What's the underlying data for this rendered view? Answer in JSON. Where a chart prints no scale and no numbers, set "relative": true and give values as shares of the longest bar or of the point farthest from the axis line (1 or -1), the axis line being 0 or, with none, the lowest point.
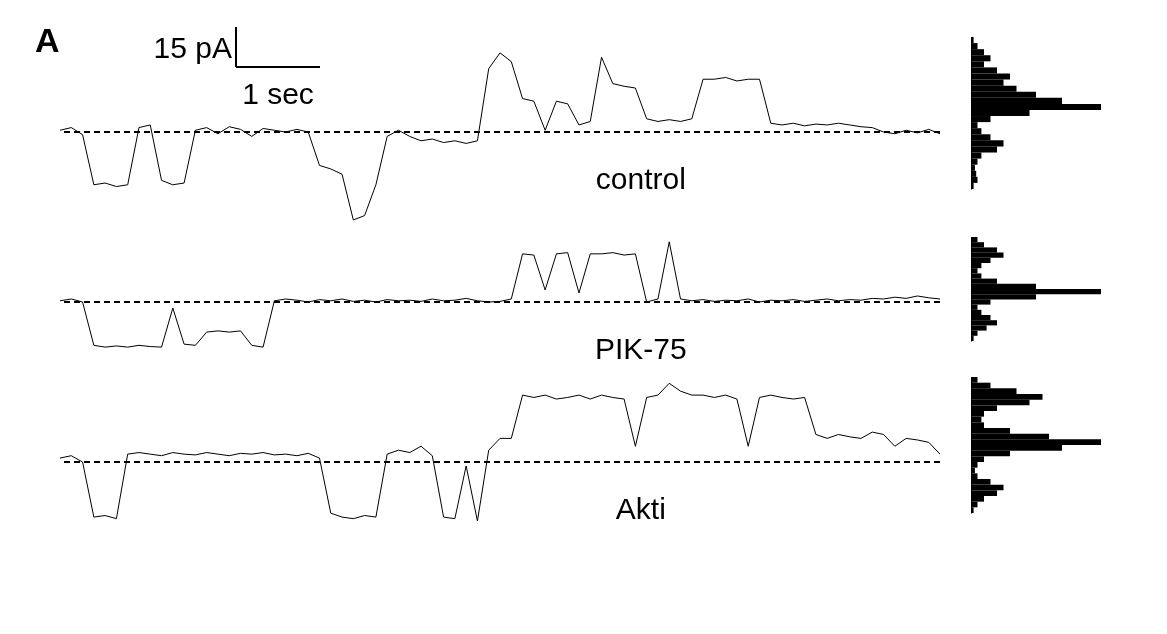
{
  "chart_data": [
    {
      "type": "line",
      "title": "control",
      "relative": true,
      "color": "#000000",
      "annotations": [
        "A",
        "15 pA",
        "1 sec"
      ],
      "categories": [
        null,
        null,
        null,
        null,
        null,
        null,
        null,
        null,
        null,
        null,
        null,
        null,
        null,
        null,
        null,
        null,
        null,
        null,
        null,
        null,
        null,
        null,
        null,
        null,
        null,
        null,
        null,
        null,
        null,
        null,
        null,
        null,
        null,
        null,
        null,
        null,
        null,
        null,
        null,
        null,
        null,
        null,
        null,
        null,
        null,
        null,
        null,
        null,
        null,
        null,
        null,
        null,
        null,
        null,
        null,
        null,
        null,
        null,
        null,
        null,
        null,
        null,
        null,
        null,
        null,
        null,
        null,
        null,
        null,
        null,
        null,
        null,
        null,
        null,
        null,
        null,
        null,
        null,
        null
      ],
      "values": [
        0.02,
        0.05,
        -0.03,
        -0.6,
        -0.58,
        -0.62,
        -0.6,
        0.05,
        0.08,
        -0.55,
        -0.6,
        -0.58,
        0.02,
        0.05,
        -0.02,
        0.06,
        0.03,
        -0.05,
        0.04,
        0.02,
        0.0,
        0.03,
        0.0,
        -0.38,
        -0.42,
        -0.48,
        -1.0,
        -0.95,
        -0.6,
        -0.05,
        0.02,
        -0.05,
        -0.1,
        -0.08,
        -0.12,
        -0.1,
        -0.13,
        -0.1,
        0.72,
        0.9,
        0.8,
        0.38,
        0.35,
        0.02,
        0.35,
        0.32,
        0.08,
        0.12,
        0.85,
        0.55,
        0.52,
        0.5,
        0.15,
        0.12,
        0.14,
        0.12,
        0.15,
        0.6,
        0.6,
        0.62,
        0.58,
        0.6,
        0.6,
        0.1,
        0.08,
        0.1,
        0.07,
        0.09,
        0.08,
        0.1,
        0.08,
        0.06,
        0.05,
        0.0,
        -0.02,
        0.02,
        -0.01,
        0.03,
        -0.02
      ],
      "ref_lines": [
        {
          "axis": "y",
          "value": 0,
          "line_style": "dashed"
        }
      ]
    },
    {
      "type": "bar",
      "orientation": "horizontal",
      "relative": true,
      "color": "#000000",
      "categories": [
        null,
        null,
        null,
        null,
        null,
        null,
        null,
        null,
        null,
        null,
        null,
        null,
        null,
        null,
        null,
        null,
        null,
        null,
        null,
        null,
        null,
        null,
        null,
        null,
        null
      ],
      "values": [
        0.02,
        0.05,
        0.1,
        0.15,
        0.1,
        0.2,
        0.3,
        0.25,
        0.35,
        0.5,
        0.7,
        1.0,
        0.45,
        0.15,
        0.05,
        0.08,
        0.15,
        0.25,
        0.2,
        0.08,
        0.05,
        0.03,
        0.04,
        0.05,
        0.02
      ]
    },
    {
      "type": "line",
      "title": "PIK-75",
      "relative": true,
      "color": "#000000",
      "categories": [
        null,
        null,
        null,
        null,
        null,
        null,
        null,
        null,
        null,
        null,
        null,
        null,
        null,
        null,
        null,
        null,
        null,
        null,
        null,
        null,
        null,
        null,
        null,
        null,
        null,
        null,
        null,
        null,
        null,
        null,
        null,
        null,
        null,
        null,
        null,
        null,
        null,
        null,
        null,
        null,
        null,
        null,
        null,
        null,
        null,
        null,
        null,
        null,
        null,
        null,
        null,
        null,
        null,
        null,
        null,
        null,
        null,
        null,
        null,
        null,
        null,
        null,
        null,
        null,
        null,
        null,
        null,
        null,
        null,
        null,
        null,
        null,
        null,
        null,
        null,
        null,
        null,
        null,
        null
      ],
      "values": [
        0.02,
        0.05,
        0.0,
        -0.72,
        -0.75,
        -0.73,
        -0.75,
        -0.72,
        -0.74,
        -0.75,
        -0.1,
        -0.7,
        -0.72,
        -0.5,
        -0.48,
        -0.5,
        -0.48,
        -0.72,
        -0.75,
        0.02,
        0.05,
        0.03,
        0.0,
        0.04,
        0.02,
        0.05,
        0.01,
        0.03,
        0.0,
        0.04,
        0.02,
        0.03,
        0.01,
        0.05,
        0.02,
        0.03,
        0.06,
        0.02,
        0.0,
        0.01,
        0.05,
        0.8,
        0.78,
        0.2,
        0.8,
        0.82,
        0.15,
        0.8,
        0.8,
        0.82,
        0.78,
        0.8,
        0.0,
        0.05,
        1.0,
        0.05,
        0.02,
        0.04,
        0.01,
        0.03,
        0.02,
        0.05,
        0.0,
        0.03,
        0.02,
        0.04,
        0.01,
        0.03,
        0.05,
        0.02,
        0.04,
        0.03,
        0.06,
        0.05,
        0.08,
        0.06,
        0.1,
        0.07,
        0.05
      ],
      "ref_lines": [
        {
          "axis": "y",
          "value": 0,
          "line_style": "dashed"
        }
      ]
    },
    {
      "type": "bar",
      "orientation": "horizontal",
      "relative": true,
      "color": "#000000",
      "categories": [
        null,
        null,
        null,
        null,
        null,
        null,
        null,
        null,
        null,
        null,
        null,
        null,
        null,
        null,
        null,
        null,
        null,
        null,
        null,
        null
      ],
      "values": [
        0.05,
        0.1,
        0.2,
        0.25,
        0.15,
        0.08,
        0.05,
        0.08,
        0.2,
        0.5,
        1.0,
        0.5,
        0.15,
        0.05,
        0.08,
        0.15,
        0.2,
        0.12,
        0.05,
        0.02
      ]
    },
    {
      "type": "line",
      "title": "Akti",
      "relative": true,
      "color": "#000000",
      "categories": [
        null,
        null,
        null,
        null,
        null,
        null,
        null,
        null,
        null,
        null,
        null,
        null,
        null,
        null,
        null,
        null,
        null,
        null,
        null,
        null,
        null,
        null,
        null,
        null,
        null,
        null,
        null,
        null,
        null,
        null,
        null,
        null,
        null,
        null,
        null,
        null,
        null,
        null,
        null,
        null,
        null,
        null,
        null,
        null,
        null,
        null,
        null,
        null,
        null,
        null,
        null,
        null,
        null,
        null,
        null,
        null,
        null,
        null,
        null,
        null,
        null,
        null,
        null,
        null,
        null,
        null,
        null,
        null,
        null,
        null,
        null,
        null,
        null,
        null,
        null,
        null,
        null,
        null,
        null
      ],
      "values": [
        0.05,
        0.08,
        0.0,
        -0.7,
        -0.68,
        -0.72,
        0.1,
        0.12,
        0.1,
        0.08,
        0.12,
        0.1,
        0.09,
        0.12,
        0.1,
        0.08,
        0.11,
        0.1,
        0.12,
        0.09,
        0.1,
        0.08,
        0.11,
        0.05,
        -0.65,
        -0.7,
        -0.72,
        -0.68,
        -0.7,
        0.1,
        0.15,
        0.12,
        0.2,
        0.08,
        -0.7,
        -0.72,
        -0.05,
        -0.75,
        0.15,
        0.3,
        0.3,
        0.85,
        0.82,
        0.85,
        0.8,
        0.82,
        0.85,
        0.8,
        0.85,
        0.82,
        0.8,
        0.2,
        0.82,
        0.85,
        1.0,
        0.9,
        0.85,
        0.85,
        0.82,
        0.85,
        0.8,
        0.2,
        0.82,
        0.85,
        0.82,
        0.8,
        0.82,
        0.35,
        0.3,
        0.35,
        0.32,
        0.3,
        0.38,
        0.35,
        0.2,
        0.3,
        0.28,
        0.25,
        0.1
      ],
      "ref_lines": [
        {
          "axis": "y",
          "value": 0,
          "line_style": "dashed"
        }
      ]
    },
    {
      "type": "bar",
      "orientation": "horizontal",
      "relative": true,
      "color": "#000000",
      "categories": [
        null,
        null,
        null,
        null,
        null,
        null,
        null,
        null,
        null,
        null,
        null,
        null,
        null,
        null,
        null,
        null,
        null,
        null,
        null,
        null,
        null,
        null,
        null,
        null
      ],
      "values": [
        0.05,
        0.15,
        0.35,
        0.55,
        0.45,
        0.2,
        0.1,
        0.08,
        0.1,
        0.3,
        0.6,
        1.0,
        0.7,
        0.3,
        0.1,
        0.05,
        0.03,
        0.05,
        0.15,
        0.25,
        0.2,
        0.1,
        0.05,
        0.02
      ]
    }
  ]
}
